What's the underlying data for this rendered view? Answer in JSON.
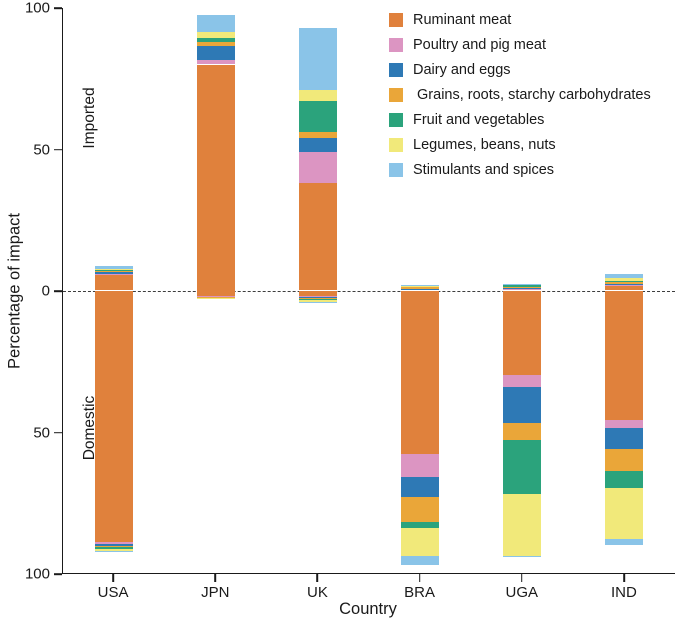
{
  "figure": {
    "region_labels": {
      "imported": "Imported",
      "domestic": "Domestic"
    }
  },
  "chart_data": {
    "type": "bar",
    "subtype": "diverging-stacked",
    "title": "",
    "xlabel": "Country",
    "ylabel": "Percentage of impact",
    "ylim": [
      -100,
      100
    ],
    "yticks": [
      "100",
      "50",
      "0",
      "50",
      "100"
    ],
    "ytick_values": [
      100,
      50,
      0,
      -50,
      -100
    ],
    "zero_line": "dashed",
    "grid": false,
    "legend_position": "top-right-inside",
    "categories": [
      "USA",
      "JPN",
      "UK",
      "BRA",
      "UGA",
      "IND"
    ],
    "annotations": {
      "imported": "Imported",
      "domestic": "Domestic"
    },
    "series": [
      {
        "name": "Ruminant meat",
        "color": "#E0813C",
        "imported": [
          5.5,
          80,
          38,
          0.4,
          0.6,
          1.5
        ],
        "domestic": [
          89,
          2,
          2,
          58,
          30,
          46
        ]
      },
      {
        "name": "Poultry and pig meat",
        "color": "#DC95C2",
        "imported": [
          0.4,
          1.5,
          11,
          0.1,
          0.1,
          0.3
        ],
        "domestic": [
          0.6,
          0.2,
          0.3,
          8,
          4,
          2.5
        ]
      },
      {
        "name": "Dairy and eggs",
        "color": "#2E79B5",
        "imported": [
          0.5,
          5,
          5,
          0.2,
          0.3,
          0.5
        ],
        "domestic": [
          0.8,
          0.2,
          0.3,
          7,
          13,
          7.5
        ]
      },
      {
        "name": " Grains, roots, starchy carbohydrates",
        "color": "#EAA639",
        "imported": [
          0.5,
          1.5,
          2,
          0.5,
          0.2,
          0.7
        ],
        "domestic": [
          0.4,
          0.1,
          0.4,
          9,
          6,
          8
        ]
      },
      {
        "name": "Fruit and vegetables",
        "color": "#2BA37C",
        "imported": [
          0.3,
          1.5,
          11,
          0.3,
          0.6,
          0.3
        ],
        "domestic": [
          0.8,
          0.1,
          0.5,
          2,
          19,
          6
        ]
      },
      {
        "name": "Legumes, beans, nuts",
        "color": "#F1E97A",
        "imported": [
          0.3,
          2,
          4,
          0.1,
          0.4,
          1
        ],
        "domestic": [
          0.5,
          0.1,
          0.4,
          10,
          22,
          18
        ]
      },
      {
        "name": "Stimulants and spices",
        "color": "#8AC4E8",
        "imported": [
          1.2,
          6,
          22,
          0.4,
          0.1,
          1.5
        ],
        "domestic": [
          0.3,
          0,
          0.1,
          3,
          0.5,
          2
        ]
      }
    ]
  }
}
